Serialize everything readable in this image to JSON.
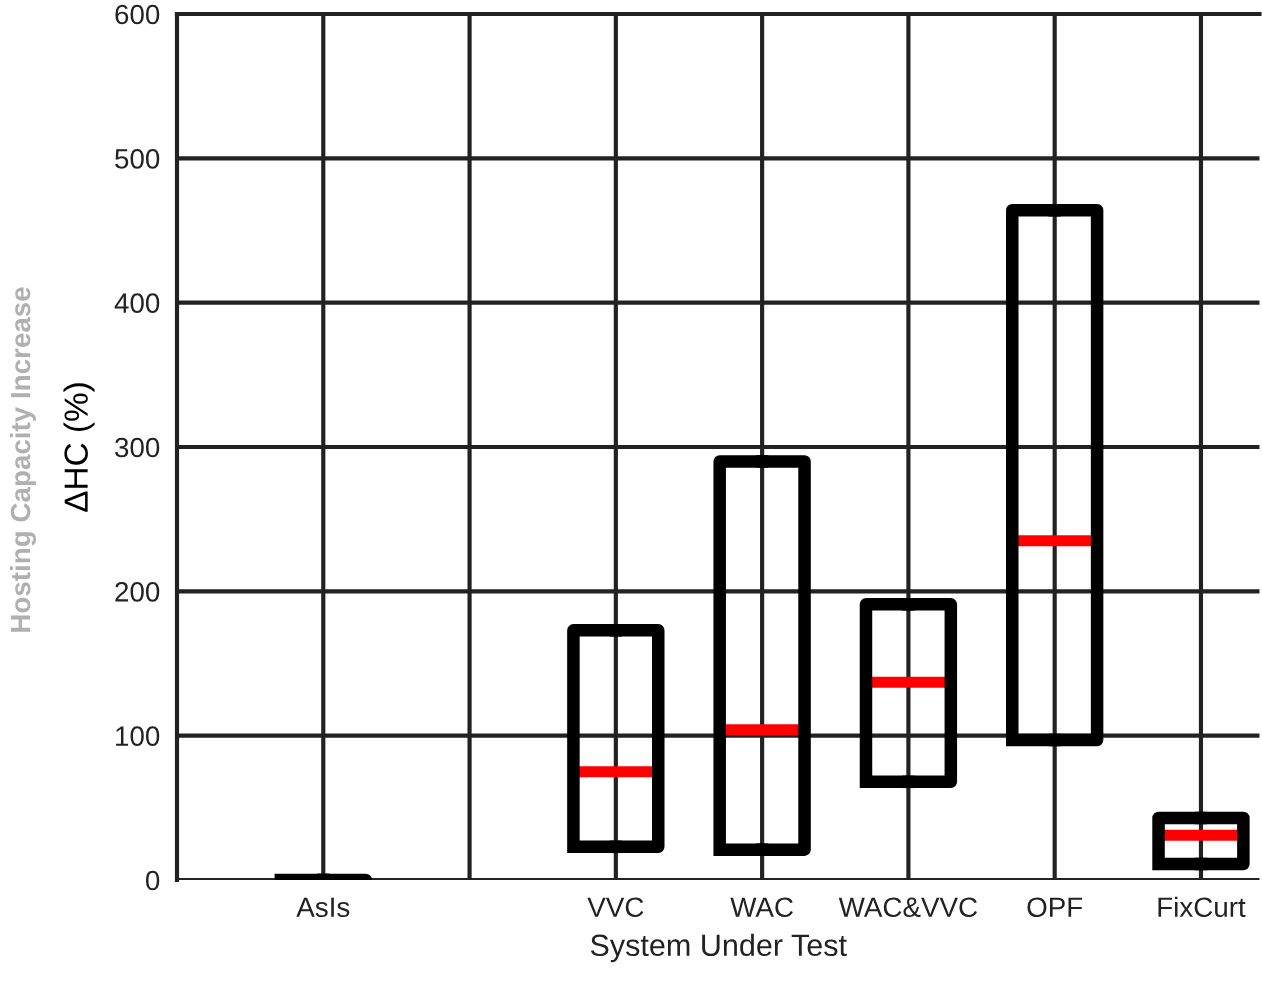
{
  "chart_data": {
    "type": "box",
    "xlabel": "System Under Test",
    "ylabel": "ΔHC (%)",
    "annotations": [
      "Hosting Capacity Increase"
    ],
    "categories": [
      "AsIs",
      null,
      "VVC",
      "WAC",
      "WAC&VVC",
      "OPF",
      "FixCurt"
    ],
    "boxes": [
      {
        "low": 0,
        "q1": 0,
        "median": 0,
        "q3": 0,
        "high": 0
      },
      null,
      {
        "low": 23,
        "q1": 23,
        "median": 75,
        "q3": 173,
        "high": 173
      },
      {
        "low": 21,
        "q1": 21,
        "median": 104,
        "q3": 290,
        "high": 290
      },
      {
        "low": 68,
        "q1": 68,
        "median": 137,
        "q3": 191,
        "high": 191
      },
      {
        "low": 97,
        "q1": 97,
        "median": 235,
        "q3": 464,
        "high": 464
      },
      {
        "low": 11,
        "q1": 11,
        "median": 31,
        "q3": 43,
        "high": 43
      }
    ],
    "ylim": [
      0,
      600
    ],
    "yticks": [
      0,
      100,
      200,
      300,
      400,
      500,
      600
    ],
    "grid": true
  }
}
